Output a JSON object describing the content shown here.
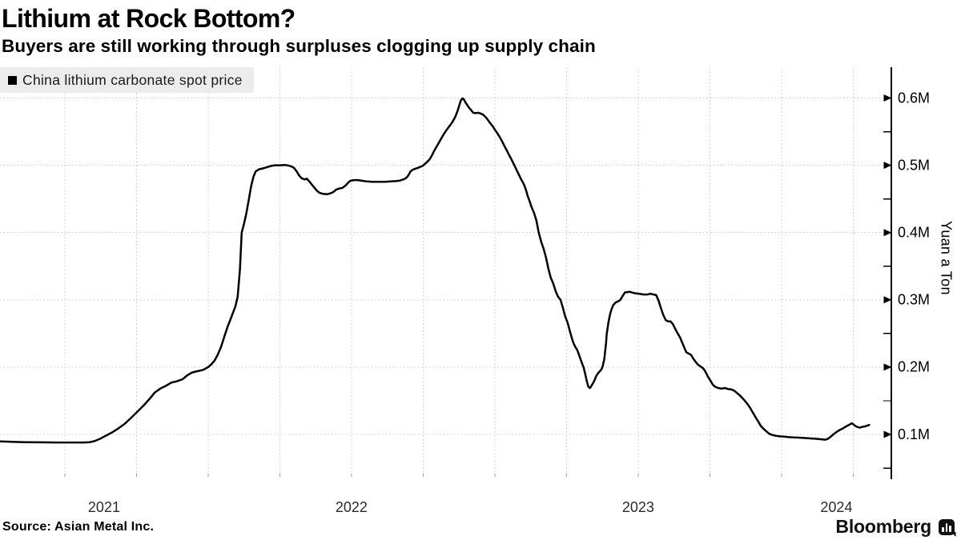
{
  "header": {
    "title": "Lithium at Rock Bottom?",
    "subtitle": "Buyers are still working through surpluses clogging up supply chain"
  },
  "legend": {
    "label": "China lithium carbonate spot price",
    "swatch_color": "#000000"
  },
  "footer": {
    "source": "Source: Asian Metal Inc.",
    "brand": "Bloomberg"
  },
  "colors": {
    "line": "#000000",
    "grid": "#c7c7c7",
    "axis": "#000000",
    "legend_bg": "#ececec",
    "year_label": "#2b2b2b"
  },
  "chart_data": {
    "type": "line",
    "title": "Lithium at Rock Bottom?",
    "series_name": "China lithium carbonate spot price",
    "xlabel": "",
    "ylabel": "Yuan a Ton",
    "unit": "million yuan per ton",
    "x_domain": [
      2021.274,
      2024.383
    ],
    "x_ticks_years": [
      "2021",
      "2022",
      "2023",
      "2024"
    ],
    "quarter_grid": {
      "start": 2021.5,
      "end": 2024.25,
      "step": 0.25
    },
    "y_ticks": [
      {
        "value": 0.6,
        "label": "0.6M"
      },
      {
        "value": 0.5,
        "label": "0.5M"
      },
      {
        "value": 0.4,
        "label": "0.4M"
      },
      {
        "value": 0.3,
        "label": "0.3M"
      },
      {
        "value": 0.2,
        "label": "0.2M"
      },
      {
        "value": 0.1,
        "label": "0.1M"
      }
    ],
    "y_minor_step": 0.05,
    "y_minor_range": [
      0.05,
      0.55
    ],
    "points": [
      [
        2021.274,
        0.0895
      ],
      [
        2021.316,
        0.089
      ],
      [
        2021.358,
        0.0885
      ],
      [
        2021.414,
        0.0882
      ],
      [
        2021.47,
        0.088
      ],
      [
        2021.525,
        0.088
      ],
      [
        2021.567,
        0.088
      ],
      [
        2021.587,
        0.0885
      ],
      [
        2021.604,
        0.09
      ],
      [
        2021.623,
        0.0935
      ],
      [
        2021.643,
        0.098
      ],
      [
        2021.665,
        0.103
      ],
      [
        2021.687,
        0.109
      ],
      [
        2021.71,
        0.116
      ],
      [
        2021.732,
        0.125
      ],
      [
        2021.754,
        0.134
      ],
      [
        2021.777,
        0.144
      ],
      [
        2021.796,
        0.153
      ],
      [
        2021.813,
        0.162
      ],
      [
        2021.833,
        0.168
      ],
      [
        2021.852,
        0.172
      ],
      [
        2021.872,
        0.177
      ],
      [
        2021.891,
        0.179
      ],
      [
        2021.911,
        0.182
      ],
      [
        2021.928,
        0.188
      ],
      [
        2021.944,
        0.192
      ],
      [
        2021.964,
        0.194
      ],
      [
        2021.983,
        0.196
      ],
      [
        2022.0,
        0.2
      ],
      [
        2022.011,
        0.204
      ],
      [
        2022.023,
        0.21
      ],
      [
        2022.034,
        0.219
      ],
      [
        2022.045,
        0.23
      ],
      [
        2022.056,
        0.245
      ],
      [
        2022.067,
        0.259
      ],
      [
        2022.078,
        0.271
      ],
      [
        2022.086,
        0.28
      ],
      [
        2022.095,
        0.29
      ],
      [
        2022.103,
        0.305
      ],
      [
        2022.111,
        0.345
      ],
      [
        2022.117,
        0.4
      ],
      [
        2022.125,
        0.413
      ],
      [
        2022.133,
        0.428
      ],
      [
        2022.141,
        0.447
      ],
      [
        2022.15,
        0.469
      ],
      [
        2022.158,
        0.483
      ],
      [
        2022.166,
        0.491
      ],
      [
        2022.178,
        0.494
      ],
      [
        2022.192,
        0.4955
      ],
      [
        2022.205,
        0.497
      ],
      [
        2022.219,
        0.499
      ],
      [
        2022.233,
        0.5
      ],
      [
        2022.25,
        0.5
      ],
      [
        2022.267,
        0.5005
      ],
      [
        2022.281,
        0.4995
      ],
      [
        2022.292,
        0.498
      ],
      [
        2022.3,
        0.496
      ],
      [
        2022.309,
        0.491
      ],
      [
        2022.317,
        0.485
      ],
      [
        2022.325,
        0.481
      ],
      [
        2022.336,
        0.479
      ],
      [
        2022.344,
        0.48
      ],
      [
        2022.355,
        0.475
      ],
      [
        2022.364,
        0.47
      ],
      [
        2022.372,
        0.466
      ],
      [
        2022.38,
        0.462
      ],
      [
        2022.389,
        0.459
      ],
      [
        2022.4,
        0.4575
      ],
      [
        2022.414,
        0.457
      ],
      [
        2022.425,
        0.458
      ],
      [
        2022.436,
        0.46
      ],
      [
        2022.447,
        0.464
      ],
      [
        2022.458,
        0.4655
      ],
      [
        2022.469,
        0.4665
      ],
      [
        2022.48,
        0.47
      ],
      [
        2022.489,
        0.4745
      ],
      [
        2022.497,
        0.477
      ],
      [
        2022.508,
        0.478
      ],
      [
        2022.522,
        0.478
      ],
      [
        2022.536,
        0.477
      ],
      [
        2022.553,
        0.476
      ],
      [
        2022.572,
        0.4755
      ],
      [
        2022.595,
        0.4755
      ],
      [
        2022.617,
        0.4755
      ],
      [
        2022.637,
        0.476
      ],
      [
        2022.653,
        0.4765
      ],
      [
        2022.667,
        0.477
      ],
      [
        2022.678,
        0.4785
      ],
      [
        2022.687,
        0.48
      ],
      [
        2022.695,
        0.483
      ],
      [
        2022.701,
        0.487
      ],
      [
        2022.706,
        0.491
      ],
      [
        2022.714,
        0.4935
      ],
      [
        2022.723,
        0.495
      ],
      [
        2022.731,
        0.496
      ],
      [
        2022.739,
        0.4975
      ],
      [
        2022.748,
        0.499
      ],
      [
        2022.756,
        0.502
      ],
      [
        2022.764,
        0.505
      ],
      [
        2022.773,
        0.509
      ],
      [
        2022.781,
        0.515
      ],
      [
        2022.789,
        0.522
      ],
      [
        2022.8,
        0.53
      ],
      [
        2022.812,
        0.539
      ],
      [
        2022.823,
        0.547
      ],
      [
        2022.834,
        0.554
      ],
      [
        2022.845,
        0.56
      ],
      [
        2022.853,
        0.565
      ],
      [
        2022.862,
        0.572
      ],
      [
        2022.87,
        0.581
      ],
      [
        2022.876,
        0.589
      ],
      [
        2022.881,
        0.596
      ],
      [
        2022.887,
        0.5995
      ],
      [
        2022.892,
        0.598
      ],
      [
        2022.898,
        0.593
      ],
      [
        2022.903,
        0.59
      ],
      [
        2022.911,
        0.585
      ],
      [
        2022.917,
        0.582
      ],
      [
        2022.925,
        0.578
      ],
      [
        2022.933,
        0.5775
      ],
      [
        2022.942,
        0.578
      ],
      [
        2022.95,
        0.577
      ],
      [
        2022.958,
        0.5755
      ],
      [
        2022.967,
        0.572
      ],
      [
        2022.975,
        0.568
      ],
      [
        2022.983,
        0.563
      ],
      [
        2022.992,
        0.5585
      ],
      [
        2023.0,
        0.553
      ],
      [
        2023.008,
        0.548
      ],
      [
        2023.017,
        0.542
      ],
      [
        2023.025,
        0.536
      ],
      [
        2023.033,
        0.529
      ],
      [
        2023.042,
        0.522
      ],
      [
        2023.05,
        0.515
      ],
      [
        2023.059,
        0.508
      ],
      [
        2023.067,
        0.501
      ],
      [
        2023.076,
        0.493
      ],
      [
        2023.084,
        0.486
      ],
      [
        2023.092,
        0.479
      ],
      [
        2023.101,
        0.472
      ],
      [
        2023.109,
        0.463
      ],
      [
        2023.114,
        0.455
      ],
      [
        2023.12,
        0.448
      ],
      [
        2023.128,
        0.438
      ],
      [
        2023.137,
        0.429
      ],
      [
        2023.145,
        0.418
      ],
      [
        2023.153,
        0.4
      ],
      [
        2023.162,
        0.386
      ],
      [
        2023.17,
        0.376
      ],
      [
        2023.179,
        0.362
      ],
      [
        2023.187,
        0.346
      ],
      [
        2023.195,
        0.333
      ],
      [
        2023.204,
        0.324
      ],
      [
        2023.212,
        0.313
      ],
      [
        2023.22,
        0.305
      ],
      [
        2023.229,
        0.3
      ],
      [
        2023.237,
        0.289
      ],
      [
        2023.245,
        0.276
      ],
      [
        2023.254,
        0.266
      ],
      [
        2023.262,
        0.253
      ],
      [
        2023.27,
        0.241
      ],
      [
        2023.276,
        0.234
      ],
      [
        2023.282,
        0.229
      ],
      [
        2023.287,
        0.226
      ],
      [
        2023.293,
        0.219
      ],
      [
        2023.298,
        0.213
      ],
      [
        2023.304,
        0.206
      ],
      [
        2023.31,
        0.199
      ],
      [
        2023.315,
        0.19
      ],
      [
        2023.321,
        0.179
      ],
      [
        2023.326,
        0.171
      ],
      [
        2023.332,
        0.169
      ],
      [
        2023.337,
        0.172
      ],
      [
        2023.346,
        0.179
      ],
      [
        2023.354,
        0.187
      ],
      [
        2023.362,
        0.192
      ],
      [
        2023.371,
        0.196
      ],
      [
        2023.376,
        0.201
      ],
      [
        2023.382,
        0.212
      ],
      [
        2023.385,
        0.224
      ],
      [
        2023.388,
        0.236
      ],
      [
        2023.39,
        0.248
      ],
      [
        2023.396,
        0.266
      ],
      [
        2023.401,
        0.277
      ],
      [
        2023.407,
        0.286
      ],
      [
        2023.413,
        0.292
      ],
      [
        2023.421,
        0.296
      ],
      [
        2023.429,
        0.2975
      ],
      [
        2023.438,
        0.3
      ],
      [
        2023.446,
        0.306
      ],
      [
        2023.454,
        0.311
      ],
      [
        2023.462,
        0.3115
      ],
      [
        2023.471,
        0.312
      ],
      [
        2023.482,
        0.3105
      ],
      [
        2023.493,
        0.3095
      ],
      [
        2023.504,
        0.309
      ],
      [
        2023.518,
        0.308
      ],
      [
        2023.532,
        0.308
      ],
      [
        2023.543,
        0.309
      ],
      [
        2023.554,
        0.308
      ],
      [
        2023.563,
        0.307
      ],
      [
        2023.571,
        0.299
      ],
      [
        2023.579,
        0.288
      ],
      [
        2023.588,
        0.277
      ],
      [
        2023.596,
        0.27
      ],
      [
        2023.604,
        0.268
      ],
      [
        2023.613,
        0.268
      ],
      [
        2023.621,
        0.264
      ],
      [
        2023.629,
        0.257
      ],
      [
        2023.638,
        0.25
      ],
      [
        2023.646,
        0.244
      ],
      [
        2023.654,
        0.236
      ],
      [
        2023.663,
        0.227
      ],
      [
        2023.668,
        0.222
      ],
      [
        2023.677,
        0.22
      ],
      [
        2023.685,
        0.218
      ],
      [
        2023.693,
        0.212
      ],
      [
        2023.702,
        0.207
      ],
      [
        2023.71,
        0.203
      ],
      [
        2023.718,
        0.201
      ],
      [
        2023.727,
        0.198
      ],
      [
        2023.735,
        0.193
      ],
      [
        2023.743,
        0.186
      ],
      [
        2023.752,
        0.18
      ],
      [
        2023.76,
        0.174
      ],
      [
        2023.768,
        0.171
      ],
      [
        2023.779,
        0.169
      ],
      [
        2023.791,
        0.168
      ],
      [
        2023.802,
        0.169
      ],
      [
        2023.813,
        0.1675
      ],
      [
        2023.824,
        0.167
      ],
      [
        2023.835,
        0.165
      ],
      [
        2023.846,
        0.161
      ],
      [
        2023.857,
        0.157
      ],
      [
        2023.868,
        0.152
      ],
      [
        2023.88,
        0.146
      ],
      [
        2023.891,
        0.139
      ],
      [
        2023.902,
        0.131
      ],
      [
        2023.91,
        0.125
      ],
      [
        2023.919,
        0.119
      ],
      [
        2023.927,
        0.113
      ],
      [
        2023.938,
        0.108
      ],
      [
        2023.946,
        0.105
      ],
      [
        2023.957,
        0.101
      ],
      [
        2023.969,
        0.099
      ],
      [
        2023.98,
        0.098
      ],
      [
        2023.994,
        0.0972
      ],
      [
        2024.008,
        0.0968
      ],
      [
        2024.025,
        0.096
      ],
      [
        2024.041,
        0.0955
      ],
      [
        2024.058,
        0.0952
      ],
      [
        2024.075,
        0.0948
      ],
      [
        2024.092,
        0.0943
      ],
      [
        2024.108,
        0.0938
      ],
      [
        2024.125,
        0.0933
      ],
      [
        2024.139,
        0.0928
      ],
      [
        2024.153,
        0.0922
      ],
      [
        2024.162,
        0.0935
      ],
      [
        2024.17,
        0.096
      ],
      [
        2024.178,
        0.099
      ],
      [
        2024.187,
        0.102
      ],
      [
        2024.195,
        0.1045
      ],
      [
        2024.203,
        0.1065
      ],
      [
        2024.212,
        0.1085
      ],
      [
        2024.22,
        0.1105
      ],
      [
        2024.228,
        0.1125
      ],
      [
        2024.237,
        0.1145
      ],
      [
        2024.245,
        0.1165
      ],
      [
        2024.251,
        0.115
      ],
      [
        2024.256,
        0.113
      ],
      [
        2024.264,
        0.111
      ],
      [
        2024.273,
        0.11
      ],
      [
        2024.281,
        0.111
      ],
      [
        2024.292,
        0.112
      ],
      [
        2024.306,
        0.114
      ]
    ]
  }
}
